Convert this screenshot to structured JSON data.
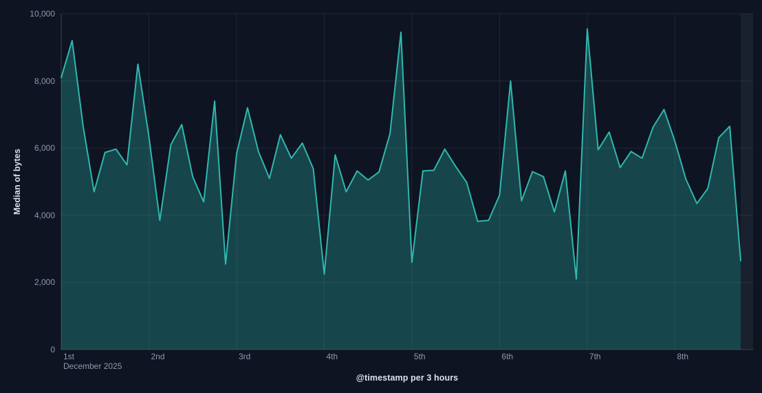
{
  "colors": {
    "background": "#0e1421",
    "grid_line": "rgba(255,255,255,0.08)",
    "axis_line": "rgba(255,255,255,0.14)",
    "tick_text": "#8f99ab",
    "axis_title_text": "#dbe1ea",
    "series_line": "#2fb8af",
    "series_fill_opacity": 0.3,
    "partial_bucket_strip": "rgba(171,192,222,0.07)"
  },
  "chart_data": {
    "type": "area",
    "title": "",
    "ylabel": "Median of bytes",
    "xlabel": "@timestamp per 3 hours",
    "ylim": [
      0,
      10000
    ],
    "grid": true,
    "legend": "none",
    "x_interval": "3 hours",
    "x_period": "December 2025",
    "y_ticks": [
      {
        "value": 0,
        "label": "0"
      },
      {
        "value": 2000,
        "label": "2,000"
      },
      {
        "value": 4000,
        "label": "4,000"
      },
      {
        "value": 6000,
        "label": "6,000"
      },
      {
        "value": 8000,
        "label": "8,000"
      },
      {
        "value": 10000,
        "label": "10,000"
      }
    ],
    "x_ticks": [
      {
        "point_index": 0,
        "label": "1st",
        "sublabel": "December 2025"
      },
      {
        "point_index": 8,
        "label": "2nd"
      },
      {
        "point_index": 16,
        "label": "3rd"
      },
      {
        "point_index": 24,
        "label": "4th"
      },
      {
        "point_index": 32,
        "label": "5th"
      },
      {
        "point_index": 40,
        "label": "6th"
      },
      {
        "point_index": 48,
        "label": "7th"
      },
      {
        "point_index": 56,
        "label": "8th"
      }
    ],
    "series": [
      {
        "name": "Median of bytes",
        "color": "#2fb8af",
        "values": [
          8100,
          9200,
          6650,
          4700,
          5870,
          5970,
          5500,
          8500,
          6350,
          3850,
          6100,
          6700,
          5150,
          4400,
          7400,
          2550,
          5830,
          7200,
          5900,
          5100,
          6400,
          5700,
          6150,
          5390,
          2250,
          5800,
          4700,
          5320,
          5050,
          5290,
          6430,
          9450,
          2600,
          5320,
          5340,
          5970,
          5450,
          4980,
          3820,
          3850,
          4600,
          8000,
          4430,
          5300,
          5150,
          4100,
          5320,
          2100,
          9550,
          5950,
          6480,
          5420,
          5900,
          5700,
          6620,
          7150,
          6200,
          5080,
          4350,
          4800,
          6310,
          6650,
          2650
        ]
      }
    ],
    "partial_bucket_marker": true
  }
}
